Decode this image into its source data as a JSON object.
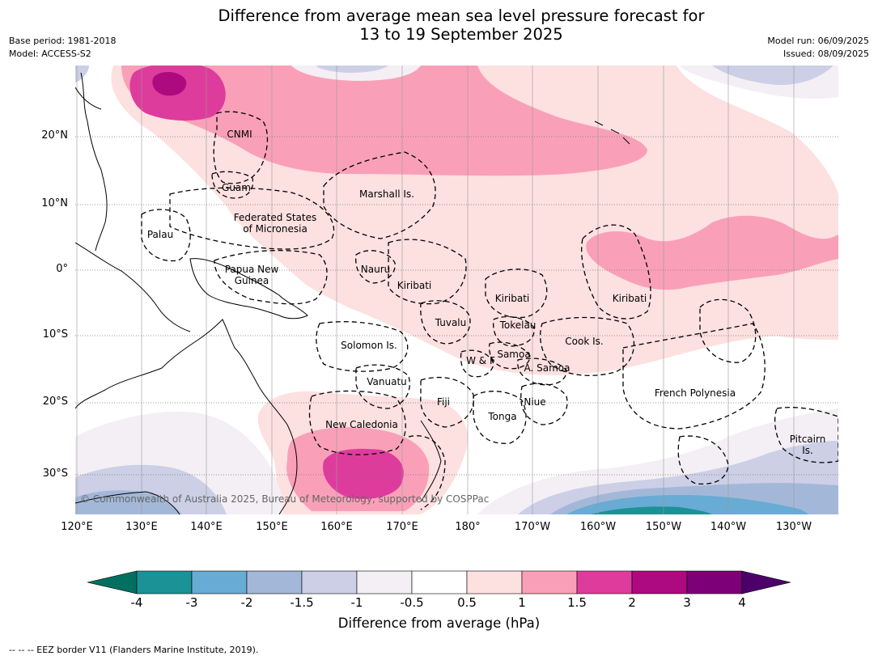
{
  "title_line1": "Difference from average mean sea level pressure forecast for",
  "title_line2": "13 to 19 September 2025",
  "base_period": "Base period: 1981-2018",
  "model": "Model: ACCESS-S2",
  "model_run": "Model run: 06/09/2025",
  "issued": "Issued: 08/09/2025",
  "lat_labels": [
    "20°N",
    "10°N",
    "0°",
    "10°S",
    "20°S",
    "30°S"
  ],
  "lon_labels": [
    "120°E",
    "130°E",
    "140°E",
    "150°E",
    "160°E",
    "170°E",
    "180°",
    "170°W",
    "160°W",
    "150°W",
    "140°W",
    "130°W"
  ],
  "regions": [
    {
      "label": "CNMI"
    },
    {
      "label": "Guam"
    },
    {
      "label": "Marshall Is."
    },
    {
      "label": "Federated States\nof Micronesia"
    },
    {
      "label": "Palau"
    },
    {
      "label": "Papua New\nGuinea"
    },
    {
      "label": "Nauru"
    },
    {
      "label": "Kiribati"
    },
    {
      "label": "Kiribati"
    },
    {
      "label": "Kiribati"
    },
    {
      "label": "Tuvalu"
    },
    {
      "label": "Tokelau"
    },
    {
      "label": "Cook Is."
    },
    {
      "label": "Solomon Is."
    },
    {
      "label": "Samoa"
    },
    {
      "label": "W & F"
    },
    {
      "label": "A. Samoa"
    },
    {
      "label": "Vanuatu"
    },
    {
      "label": "Fiji"
    },
    {
      "label": "Niue"
    },
    {
      "label": "Tonga"
    },
    {
      "label": "French Polynesia"
    },
    {
      "label": "New Caledonia"
    },
    {
      "label": "Pitcairn\nIs."
    }
  ],
  "copyright": "© Commonwealth of Australia 2025, Bureau of Meteorology, supported by COSPPac",
  "colorbar": {
    "ticks": [
      "-4",
      "-3",
      "-2",
      "-1.5",
      "-1",
      "-0.5",
      "0.5",
      "1",
      "1.5",
      "2",
      "3",
      "4"
    ],
    "colors": [
      "#007060",
      "#1a9296",
      "#68abd4",
      "#a3b8d8",
      "#cccfe6",
      "#f3eff5",
      "#ffffff",
      "#fde0e0",
      "#f9a0b8",
      "#de3c9d",
      "#ad0a80",
      "#7c0078",
      "#4d006a"
    ],
    "label": "Difference from average (hPa)"
  },
  "footnote": "--  --  -- EEZ border V11 (Flanders Marine Institute, 2019)."
}
